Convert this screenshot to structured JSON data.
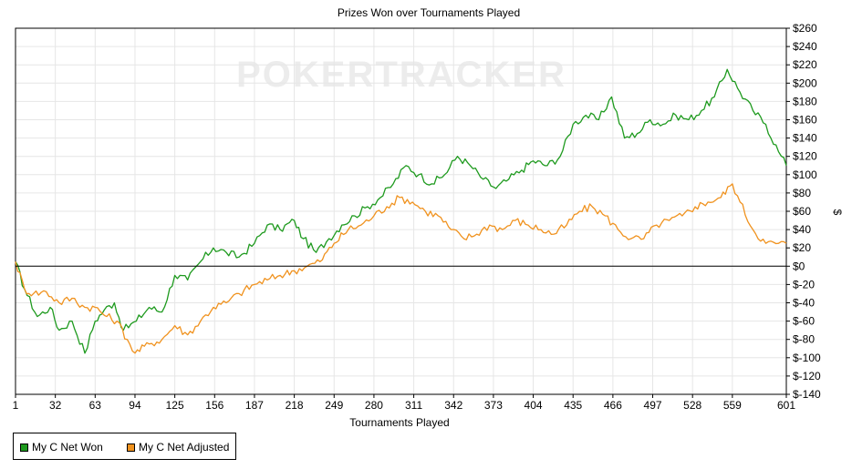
{
  "chart_data": {
    "type": "line",
    "title": "Prizes Won over Tournaments Played",
    "xlabel": "Tournaments Played",
    "ylabel": "$",
    "watermark": "POKERTRACKER",
    "xlim": [
      1,
      601
    ],
    "ylim": [
      -140,
      260
    ],
    "x_ticks": [
      1,
      32,
      63,
      94,
      125,
      156,
      187,
      218,
      249,
      280,
      311,
      342,
      373,
      404,
      435,
      466,
      497,
      528,
      559,
      601
    ],
    "y_ticks": [
      -140,
      -120,
      -100,
      -80,
      -60,
      -40,
      -20,
      0,
      20,
      40,
      60,
      80,
      100,
      120,
      140,
      160,
      180,
      200,
      220,
      240,
      260
    ],
    "y_tick_labels": [
      "$-140",
      "$-120",
      "$-100",
      "$-80",
      "$-60",
      "$-40",
      "$-20",
      "$0",
      "$20",
      "$40",
      "$60",
      "$80",
      "$100",
      "$120",
      "$140",
      "$160",
      "$180",
      "$200",
      "$220",
      "$240",
      "$260"
    ],
    "grid": true,
    "legend_position": "bottom-left",
    "series": [
      {
        "name": "My C Net Won",
        "color": "#1e9a1e",
        "points": [
          [
            1,
            5
          ],
          [
            8,
            -25
          ],
          [
            18,
            -55
          ],
          [
            28,
            -45
          ],
          [
            35,
            -70
          ],
          [
            45,
            -60
          ],
          [
            55,
            -95
          ],
          [
            63,
            -60
          ],
          [
            70,
            -48
          ],
          [
            78,
            -40
          ],
          [
            85,
            -70
          ],
          [
            95,
            -60
          ],
          [
            105,
            -45
          ],
          [
            115,
            -50
          ],
          [
            125,
            -10
          ],
          [
            135,
            -15
          ],
          [
            145,
            5
          ],
          [
            155,
            20
          ],
          [
            165,
            15
          ],
          [
            175,
            10
          ],
          [
            187,
            25
          ],
          [
            197,
            45
          ],
          [
            207,
            40
          ],
          [
            218,
            50
          ],
          [
            225,
            30
          ],
          [
            235,
            15
          ],
          [
            245,
            30
          ],
          [
            255,
            45
          ],
          [
            265,
            55
          ],
          [
            275,
            65
          ],
          [
            285,
            75
          ],
          [
            295,
            90
          ],
          [
            305,
            110
          ],
          [
            315,
            100
          ],
          [
            325,
            90
          ],
          [
            335,
            100
          ],
          [
            345,
            120
          ],
          [
            355,
            110
          ],
          [
            365,
            95
          ],
          [
            375,
            85
          ],
          [
            385,
            95
          ],
          [
            395,
            105
          ],
          [
            404,
            115
          ],
          [
            415,
            110
          ],
          [
            425,
            120
          ],
          [
            435,
            155
          ],
          [
            445,
            165
          ],
          [
            455,
            160
          ],
          [
            465,
            185
          ],
          [
            475,
            140
          ],
          [
            485,
            145
          ],
          [
            495,
            160
          ],
          [
            505,
            155
          ],
          [
            515,
            165
          ],
          [
            525,
            160
          ],
          [
            535,
            170
          ],
          [
            545,
            185
          ],
          [
            555,
            215
          ],
          [
            565,
            190
          ],
          [
            575,
            170
          ],
          [
            585,
            155
          ],
          [
            595,
            125
          ],
          [
            601,
            110
          ]
        ]
      },
      {
        "name": "My C Net Adjusted",
        "color": "#f0921e",
        "points": [
          [
            1,
            5
          ],
          [
            8,
            -25
          ],
          [
            15,
            -30
          ],
          [
            25,
            -28
          ],
          [
            35,
            -40
          ],
          [
            45,
            -35
          ],
          [
            55,
            -45
          ],
          [
            63,
            -45
          ],
          [
            72,
            -55
          ],
          [
            80,
            -60
          ],
          [
            88,
            -80
          ],
          [
            94,
            -95
          ],
          [
            105,
            -85
          ],
          [
            115,
            -80
          ],
          [
            125,
            -65
          ],
          [
            135,
            -75
          ],
          [
            145,
            -60
          ],
          [
            155,
            -45
          ],
          [
            165,
            -40
          ],
          [
            175,
            -30
          ],
          [
            187,
            -20
          ],
          [
            197,
            -15
          ],
          [
            207,
            -10
          ],
          [
            218,
            -5
          ],
          [
            228,
            0
          ],
          [
            238,
            5
          ],
          [
            249,
            25
          ],
          [
            260,
            40
          ],
          [
            270,
            45
          ],
          [
            280,
            55
          ],
          [
            290,
            65
          ],
          [
            300,
            75
          ],
          [
            310,
            70
          ],
          [
            320,
            60
          ],
          [
            330,
            55
          ],
          [
            340,
            40
          ],
          [
            350,
            30
          ],
          [
            360,
            35
          ],
          [
            370,
            45
          ],
          [
            380,
            40
          ],
          [
            390,
            50
          ],
          [
            400,
            45
          ],
          [
            410,
            40
          ],
          [
            420,
            35
          ],
          [
            430,
            45
          ],
          [
            440,
            60
          ],
          [
            450,
            65
          ],
          [
            460,
            55
          ],
          [
            470,
            40
          ],
          [
            480,
            30
          ],
          [
            490,
            30
          ],
          [
            500,
            45
          ],
          [
            510,
            50
          ],
          [
            520,
            55
          ],
          [
            530,
            65
          ],
          [
            540,
            70
          ],
          [
            550,
            75
          ],
          [
            559,
            90
          ],
          [
            565,
            70
          ],
          [
            575,
            40
          ],
          [
            585,
            25
          ],
          [
            595,
            25
          ],
          [
            601,
            25
          ]
        ]
      }
    ]
  }
}
